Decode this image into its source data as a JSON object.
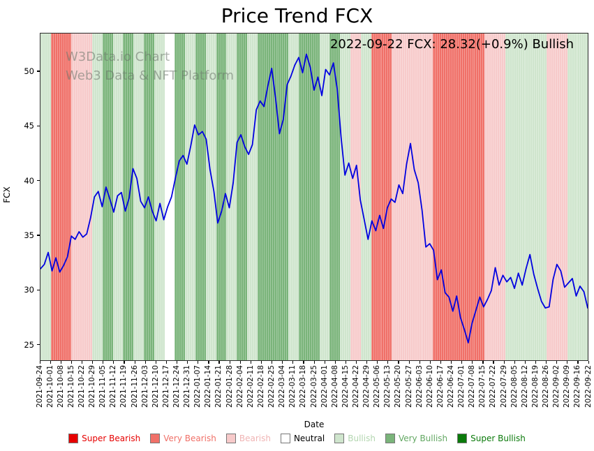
{
  "title": "Price Trend FCX",
  "annotation_text": "2022-09-22 FCX: 28.32(+0.9%) Bullish",
  "watermark": {
    "line1": "W3Data.io Chart",
    "line2": "Web3 Data & NFT Platform"
  },
  "axes": {
    "xlabel": "Date",
    "ylabel": "FCX",
    "yticks": [
      25,
      30,
      35,
      40,
      45,
      50
    ]
  },
  "sentiment_colors": {
    "super_bearish": "#e60000",
    "very_bearish": "#f07068",
    "bearish": "#f7caca",
    "neutral": "#ffffff",
    "bullish": "#cfe5cd",
    "very_bullish": "#7ab47a",
    "super_bullish": "#0b7a0b"
  },
  "legend": [
    {
      "label": "Super Bearish",
      "color": "#e60000",
      "text_color": "#e60000"
    },
    {
      "label": "Very Bearish",
      "color": "#f07068",
      "text_color": "#f07068"
    },
    {
      "label": "Bearish",
      "color": "#f7caca",
      "text_color": "#f0b4b4"
    },
    {
      "label": "Neutral",
      "color": "#ffffff",
      "text_color": "#000000"
    },
    {
      "label": "Bullish",
      "color": "#cfe5cd",
      "text_color": "#b3d6b0"
    },
    {
      "label": "Very Bullish",
      "color": "#7ab47a",
      "text_color": "#63a863"
    },
    {
      "label": "Super Bullish",
      "color": "#0b7a0b",
      "text_color": "#0b7a0b"
    }
  ],
  "chart_data": {
    "type": "line",
    "title": "Price Trend FCX",
    "xlabel": "Date",
    "ylabel": "FCX",
    "ylim": [
      23.5,
      53.5
    ],
    "grid": false,
    "line_color": "#0000e0",
    "legend_position": "bottom",
    "x_tick_labels": [
      "2021-09-24",
      "2021-10-01",
      "2021-10-08",
      "2021-10-15",
      "2021-10-22",
      "2021-10-29",
      "2021-11-05",
      "2021-11-12",
      "2021-11-19",
      "2021-11-26",
      "2021-12-03",
      "2021-12-10",
      "2021-12-17",
      "2021-12-24",
      "2021-12-31",
      "2022-01-07",
      "2022-01-14",
      "2022-01-21",
      "2022-01-28",
      "2022-02-04",
      "2022-02-11",
      "2022-02-18",
      "2022-02-25",
      "2022-03-04",
      "2022-03-11",
      "2022-03-18",
      "2022-03-25",
      "2022-04-01",
      "2022-04-08",
      "2022-04-15",
      "2022-04-22",
      "2022-04-29",
      "2022-05-06",
      "2022-05-13",
      "2022-05-20",
      "2022-05-27",
      "2022-06-03",
      "2022-06-10",
      "2022-06-17",
      "2022-06-24",
      "2022-07-01",
      "2022-07-08",
      "2022-07-15",
      "2022-07-22",
      "2022-07-29",
      "2022-08-05",
      "2022-08-12",
      "2022-08-19",
      "2022-08-26",
      "2022-09-02",
      "2022-09-09",
      "2022-09-16",
      "2022-09-22"
    ],
    "weekly_sentiment": [
      "bullish",
      "very_bearish",
      "very_bearish",
      "bearish",
      "bearish",
      "bullish",
      "very_bullish",
      "bullish",
      "very_bullish",
      "bullish",
      "very_bullish",
      "bullish",
      "neutral",
      "very_bullish",
      "bullish",
      "very_bullish",
      "bullish",
      "very_bullish",
      "bullish",
      "very_bullish",
      "bullish",
      "very_bullish",
      "very_bullish",
      "very_bullish",
      "bullish",
      "very_bullish",
      "very_bullish",
      "bullish",
      "very_bullish",
      "bullish",
      "bearish",
      "bullish",
      "very_bearish",
      "very_bearish",
      "bearish",
      "bearish",
      "bearish",
      "bearish",
      "very_bearish",
      "very_bearish",
      "very_bearish",
      "very_bearish",
      "very_bearish",
      "bearish",
      "bearish",
      "bullish",
      "bullish",
      "bullish",
      "bullish",
      "bearish",
      "bearish",
      "bullish",
      "bullish"
    ],
    "prices": [
      31.9,
      32.3,
      33.4,
      31.7,
      32.9,
      31.6,
      32.2,
      33.0,
      34.9,
      34.6,
      35.3,
      34.8,
      35.1,
      36.6,
      38.5,
      39.0,
      37.6,
      39.4,
      38.3,
      37.1,
      38.6,
      38.9,
      37.2,
      38.4,
      41.1,
      40.2,
      38.1,
      37.5,
      38.5,
      37.2,
      36.3,
      37.9,
      36.4,
      37.6,
      38.5,
      40.2,
      41.8,
      42.3,
      41.5,
      43.2,
      45.1,
      44.2,
      44.5,
      43.8,
      41.0,
      39.0,
      36.1,
      37.2,
      38.8,
      37.5,
      39.8,
      43.5,
      44.2,
      43.1,
      42.4,
      43.3,
      46.5,
      47.3,
      46.8,
      48.7,
      50.3,
      47.6,
      44.3,
      45.6,
      48.8,
      49.6,
      50.6,
      51.3,
      49.9,
      51.6,
      50.4,
      48.3,
      49.5,
      47.8,
      50.2,
      49.7,
      50.8,
      48.4,
      44.0,
      40.5,
      41.6,
      40.2,
      41.4,
      38.2,
      36.4,
      34.6,
      36.3,
      35.4,
      36.8,
      35.6,
      37.5,
      38.3,
      38.0,
      39.6,
      38.8,
      41.5,
      43.4,
      41.0,
      39.8,
      37.3,
      33.9,
      34.2,
      33.6,
      30.9,
      31.8,
      29.7,
      29.3,
      28.0,
      29.4,
      27.4,
      26.3,
      25.1,
      26.9,
      28.1,
      29.3,
      28.4,
      29.1,
      29.9,
      32.0,
      30.4,
      31.3,
      30.7,
      31.1,
      30.1,
      31.5,
      30.4,
      31.9,
      33.2,
      31.4,
      30.1,
      28.9,
      28.3,
      28.4,
      30.9,
      32.3,
      31.7,
      30.2,
      30.6,
      31.0,
      29.4,
      30.3,
      29.8,
      28.3
    ]
  }
}
